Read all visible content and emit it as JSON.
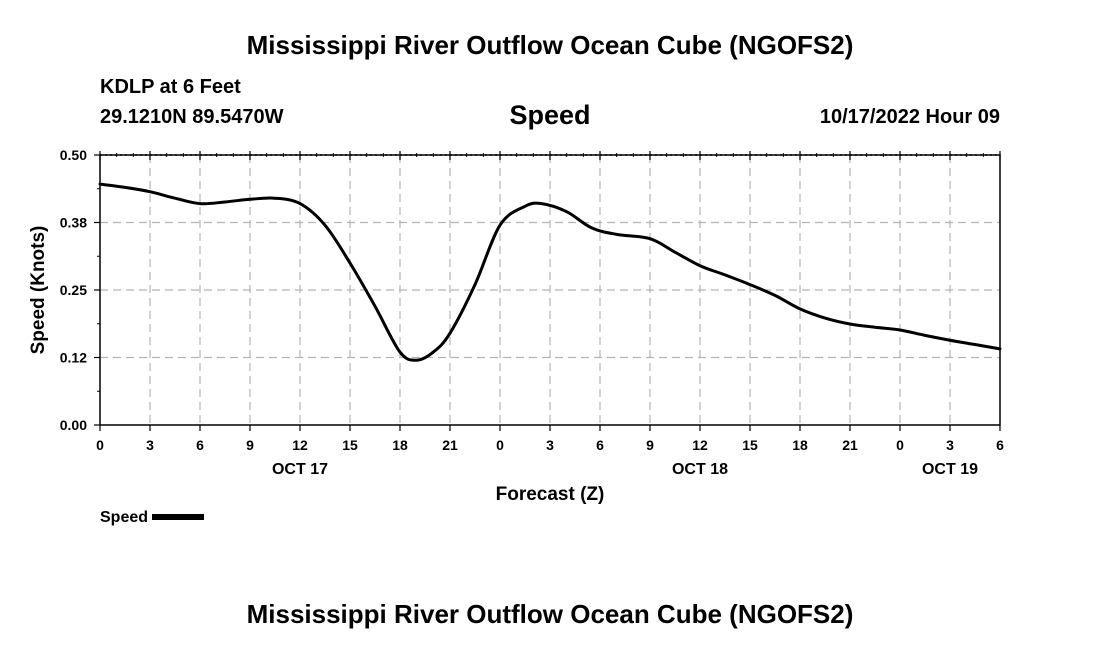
{
  "header": {
    "title": "Mississippi River Outflow Ocean Cube (NGOFS2)",
    "station": "KDLP at 6 Feet",
    "coords": "29.1210N  89.5470W",
    "datetime": "10/17/2022 Hour 09"
  },
  "footer": {
    "title": "Mississippi River Outflow Ocean Cube (NGOFS2)"
  },
  "legend": {
    "label": "Speed"
  },
  "chart_data": {
    "type": "line",
    "title": "Speed",
    "xlabel": "Forecast (Z)",
    "ylabel": "Speed (Knots)",
    "ylim": [
      0,
      0.5
    ],
    "y_ticks": [
      "0.00",
      "0.12",
      "0.25",
      "0.38",
      "0.50"
    ],
    "xlim": [
      0,
      54
    ],
    "x_ticks": [
      "0",
      "3",
      "6",
      "9",
      "12",
      "15",
      "18",
      "21",
      "0",
      "3",
      "6",
      "9",
      "12",
      "15",
      "18",
      "21",
      "0",
      "3",
      "6"
    ],
    "date_labels": [
      {
        "hour": 12,
        "label": "OCT 17"
      },
      {
        "hour": 36,
        "label": "OCT 18"
      },
      {
        "hour": 51,
        "label": "OCT 19"
      }
    ],
    "grid": true,
    "series": [
      {
        "name": "Speed",
        "color": "#000000",
        "x": [
          0,
          1.5,
          3,
          4.5,
          6,
          7.5,
          9,
          10.5,
          12,
          13.5,
          15,
          16.5,
          18,
          19,
          20,
          21,
          22.5,
          24,
          25.5,
          26.5,
          28,
          29.5,
          31,
          33,
          34.5,
          36,
          37.5,
          39,
          40.5,
          42,
          43.5,
          45,
          46.5,
          48,
          49.5,
          51,
          52.5,
          54
        ],
        "y": [
          0.446,
          0.44,
          0.432,
          0.42,
          0.41,
          0.413,
          0.418,
          0.42,
          0.41,
          0.37,
          0.3,
          0.22,
          0.135,
          0.12,
          0.135,
          0.17,
          0.26,
          0.37,
          0.405,
          0.41,
          0.395,
          0.365,
          0.353,
          0.345,
          0.32,
          0.295,
          0.278,
          0.26,
          0.24,
          0.215,
          0.198,
          0.187,
          0.181,
          0.176,
          0.166,
          0.157,
          0.149,
          0.141
        ]
      }
    ]
  }
}
